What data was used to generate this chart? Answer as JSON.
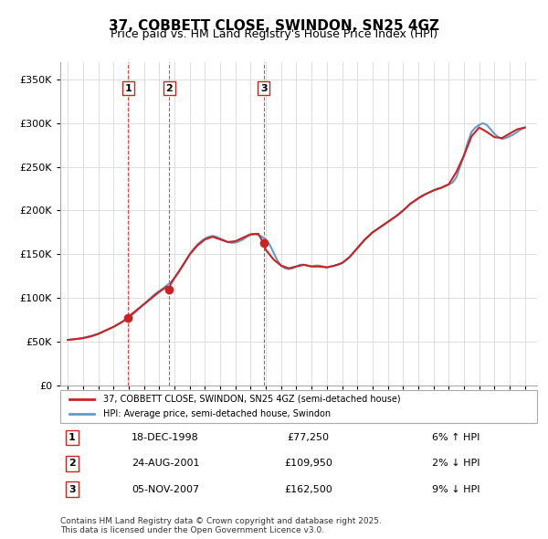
{
  "title": "37, COBBETT CLOSE, SWINDON, SN25 4GZ",
  "subtitle": "Price paid vs. HM Land Registry's House Price Index (HPI)",
  "purchases": [
    {
      "label": "1",
      "date": 1998.96,
      "price": 77250
    },
    {
      "label": "2",
      "date": 2001.65,
      "price": 109950
    },
    {
      "label": "3",
      "date": 2007.85,
      "price": 162500
    }
  ],
  "purchase_annotations": [
    {
      "num": "1",
      "date": "18-DEC-1998",
      "price": "£77,250",
      "pct": "6% ↑ HPI"
    },
    {
      "num": "2",
      "date": "24-AUG-2001",
      "price": "£109,950",
      "pct": "2% ↓ HPI"
    },
    {
      "num": "3",
      "date": "05-NOV-2007",
      "price": "£162,500",
      "pct": "9% ↓ HPI"
    }
  ],
  "hpi_line_color": "#6699cc",
  "paid_line_color": "#cc2222",
  "vline_color": "#cc2222",
  "ylabel": "",
  "ylim": [
    0,
    370000
  ],
  "yticks": [
    0,
    50000,
    100000,
    150000,
    200000,
    250000,
    300000,
    350000
  ],
  "ytick_labels": [
    "£0",
    "£50K",
    "£100K",
    "£150K",
    "£200K",
    "£250K",
    "£300K",
    "£350K"
  ],
  "xlim_start": 1994.5,
  "xlim_end": 2025.8,
  "xticks": [
    1995,
    1996,
    1997,
    1998,
    1999,
    2000,
    2001,
    2002,
    2003,
    2004,
    2005,
    2006,
    2007,
    2008,
    2009,
    2010,
    2011,
    2012,
    2013,
    2014,
    2015,
    2016,
    2017,
    2018,
    2019,
    2020,
    2021,
    2022,
    2023,
    2024,
    2025
  ],
  "legend_line1": "37, COBBETT CLOSE, SWINDON, SN25 4GZ (semi-detached house)",
  "legend_line2": "HPI: Average price, semi-detached house, Swindon",
  "footer": "Contains HM Land Registry data © Crown copyright and database right 2025.\nThis data is licensed under the Open Government Licence v3.0.",
  "hpi_data": {
    "years": [
      1995.0,
      1995.25,
      1995.5,
      1995.75,
      1996.0,
      1996.25,
      1996.5,
      1996.75,
      1997.0,
      1997.25,
      1997.5,
      1997.75,
      1998.0,
      1998.25,
      1998.5,
      1998.75,
      1999.0,
      1999.25,
      1999.5,
      1999.75,
      2000.0,
      2000.25,
      2000.5,
      2000.75,
      2001.0,
      2001.25,
      2001.5,
      2001.75,
      2002.0,
      2002.25,
      2002.5,
      2002.75,
      2003.0,
      2003.25,
      2003.5,
      2003.75,
      2004.0,
      2004.25,
      2004.5,
      2004.75,
      2005.0,
      2005.25,
      2005.5,
      2005.75,
      2006.0,
      2006.25,
      2006.5,
      2006.75,
      2007.0,
      2007.25,
      2007.5,
      2007.75,
      2008.0,
      2008.25,
      2008.5,
      2008.75,
      2009.0,
      2009.25,
      2009.5,
      2009.75,
      2010.0,
      2010.25,
      2010.5,
      2010.75,
      2011.0,
      2011.25,
      2011.5,
      2011.75,
      2012.0,
      2012.25,
      2012.5,
      2012.75,
      2013.0,
      2013.25,
      2013.5,
      2013.75,
      2014.0,
      2014.25,
      2014.5,
      2014.75,
      2015.0,
      2015.25,
      2015.5,
      2015.75,
      2016.0,
      2016.25,
      2016.5,
      2016.75,
      2017.0,
      2017.25,
      2017.5,
      2017.75,
      2018.0,
      2018.25,
      2018.5,
      2018.75,
      2019.0,
      2019.25,
      2019.5,
      2019.75,
      2020.0,
      2020.25,
      2020.5,
      2020.75,
      2021.0,
      2021.25,
      2021.5,
      2021.75,
      2022.0,
      2022.25,
      2022.5,
      2022.75,
      2023.0,
      2023.25,
      2023.5,
      2023.75,
      2024.0,
      2024.25,
      2024.5,
      2024.75,
      2025.0
    ],
    "values": [
      52000,
      52500,
      53000,
      53500,
      54500,
      55500,
      56500,
      57500,
      59000,
      61000,
      63000,
      65000,
      67000,
      69500,
      72000,
      74500,
      77500,
      81000,
      85000,
      89000,
      93000,
      97000,
      101000,
      105000,
      108000,
      111000,
      114500,
      118000,
      123000,
      129000,
      136000,
      143000,
      150000,
      156000,
      161000,
      165000,
      168000,
      170000,
      171000,
      170000,
      168000,
      166000,
      164000,
      163000,
      163500,
      165000,
      167000,
      170000,
      172000,
      173000,
      172000,
      170000,
      167000,
      161000,
      152000,
      143000,
      137000,
      134000,
      133000,
      134000,
      136000,
      138000,
      138000,
      137000,
      136000,
      137000,
      137000,
      136000,
      135000,
      136000,
      137000,
      138000,
      140000,
      143000,
      147000,
      152000,
      157000,
      162000,
      167000,
      171000,
      175000,
      178000,
      181000,
      184000,
      187000,
      190000,
      193000,
      196000,
      200000,
      204000,
      208000,
      211000,
      214000,
      217000,
      219000,
      221000,
      223000,
      225000,
      226000,
      228000,
      230000,
      232000,
      238000,
      250000,
      263000,
      278000,
      290000,
      295000,
      298000,
      300000,
      298000,
      293000,
      288000,
      284000,
      282000,
      283000,
      285000,
      287000,
      290000,
      293000,
      295000
    ]
  },
  "price_paid_data": {
    "years": [
      1995.0,
      1995.5,
      1996.0,
      1996.5,
      1997.0,
      1997.5,
      1998.0,
      1998.5,
      1998.96,
      1999.0,
      1999.5,
      2000.0,
      2000.5,
      2001.0,
      2001.5,
      2001.65,
      2001.75,
      2002.0,
      2002.5,
      2003.0,
      2003.5,
      2004.0,
      2004.5,
      2005.0,
      2005.5,
      2006.0,
      2006.5,
      2007.0,
      2007.5,
      2007.85,
      2008.0,
      2008.5,
      2009.0,
      2009.5,
      2010.0,
      2010.5,
      2011.0,
      2011.5,
      2012.0,
      2012.5,
      2013.0,
      2013.5,
      2014.0,
      2014.5,
      2015.0,
      2015.5,
      2016.0,
      2016.5,
      2017.0,
      2017.5,
      2018.0,
      2018.5,
      2019.0,
      2019.5,
      2020.0,
      2020.5,
      2021.0,
      2021.5,
      2022.0,
      2022.5,
      2023.0,
      2023.5,
      2024.0,
      2024.5,
      2025.0
    ],
    "values": [
      52000,
      53000,
      54000,
      56000,
      59000,
      63000,
      67000,
      72000,
      77250,
      79000,
      86000,
      93000,
      100000,
      107000,
      113000,
      109950,
      116000,
      123000,
      136000,
      150000,
      160000,
      167000,
      170000,
      167000,
      164000,
      165000,
      169000,
      173000,
      173500,
      162500,
      155000,
      144000,
      137000,
      134000,
      136000,
      138000,
      136000,
      136000,
      135000,
      137000,
      140000,
      147000,
      157000,
      167000,
      175000,
      181000,
      187000,
      193000,
      200000,
      208000,
      214000,
      219000,
      223000,
      226000,
      230000,
      244000,
      263000,
      285000,
      295000,
      290000,
      284000,
      283000,
      288000,
      293000,
      295000
    ]
  }
}
